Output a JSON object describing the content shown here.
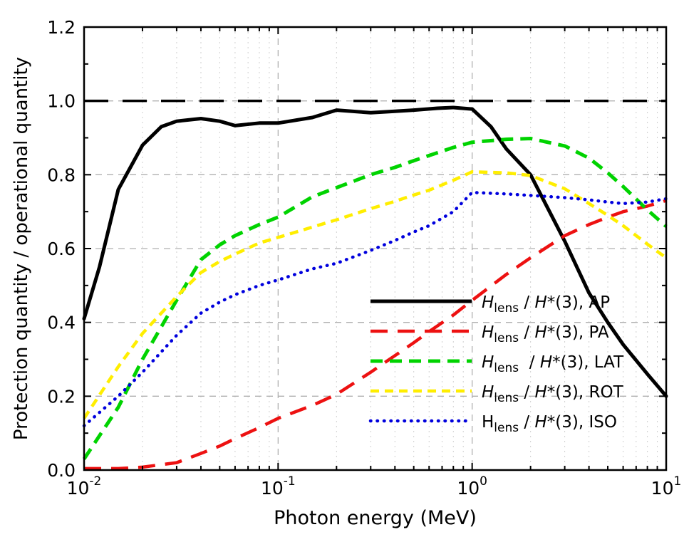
{
  "chart_data": {
    "type": "line",
    "title": "",
    "xlabel": "Photon energy (MeV)",
    "ylabel": "Protection quantity / operational quantity",
    "x_scale": "log",
    "xlim": [
      0.01,
      10
    ],
    "ylim": [
      0.0,
      1.2
    ],
    "x_major_ticks": [
      0.01,
      0.1,
      1,
      10
    ],
    "x_tick_labels": [
      {
        "base": "10",
        "exp": "-2"
      },
      {
        "base": "10",
        "exp": "-1"
      },
      {
        "base": "10",
        "exp": "0"
      },
      {
        "base": "10",
        "exp": "1"
      }
    ],
    "y_major_ticks": [
      0.0,
      0.2,
      0.4,
      0.6,
      0.8,
      1.0,
      1.2
    ],
    "y_tick_labels": [
      "0.0",
      "0.2",
      "0.4",
      "0.6",
      "0.8",
      "1.0",
      "1.2"
    ],
    "y_minor_step": 0.1,
    "grid": {
      "major_vertical_at": [
        0.1,
        1
      ],
      "horizontal_at": [
        0.2,
        0.4,
        0.6,
        0.8,
        1.0
      ],
      "major_color": "#b0b0b0",
      "minor_color": "#cfcfcf"
    },
    "reference_line": {
      "y": 1.0,
      "color": "#000000",
      "dash": [
        34,
        20
      ],
      "width": 3.5
    },
    "legend_position": "lower-right-inside",
    "series": [
      {
        "name": "AP",
        "color": "#000000",
        "dash": null,
        "width": 5,
        "label_segments": [
          {
            "t": "H",
            "style": "italic"
          },
          {
            "t": "lens",
            "style": "sub"
          },
          {
            "t": " / ",
            "style": "normal"
          },
          {
            "t": "H",
            "style": "italic"
          },
          {
            "t": "*(3), AP",
            "style": "normal"
          }
        ],
        "x": [
          0.01,
          0.012,
          0.015,
          0.02,
          0.025,
          0.03,
          0.04,
          0.05,
          0.06,
          0.08,
          0.1,
          0.15,
          0.2,
          0.3,
          0.4,
          0.5,
          0.662,
          0.8,
          1.0,
          1.25,
          1.5,
          2,
          3,
          4,
          5,
          6,
          8,
          10
        ],
        "y": [
          0.41,
          0.55,
          0.76,
          0.88,
          0.93,
          0.945,
          0.952,
          0.945,
          0.933,
          0.94,
          0.94,
          0.955,
          0.975,
          0.968,
          0.972,
          0.975,
          0.98,
          0.982,
          0.978,
          0.93,
          0.87,
          0.8,
          0.62,
          0.48,
          0.4,
          0.34,
          0.26,
          0.2
        ]
      },
      {
        "name": "PA",
        "color": "#ed1111",
        "dash": [
          24,
          14
        ],
        "width": 4.5,
        "label_segments": [
          {
            "t": "H",
            "style": "italic"
          },
          {
            "t": "lens",
            "style": "sub"
          },
          {
            "t": " / ",
            "style": "normal"
          },
          {
            "t": "H",
            "style": "italic"
          },
          {
            "t": "*(3), PA",
            "style": "normal"
          }
        ],
        "x": [
          0.01,
          0.015,
          0.02,
          0.03,
          0.04,
          0.05,
          0.06,
          0.08,
          0.1,
          0.15,
          0.2,
          0.3,
          0.4,
          0.5,
          0.6,
          0.8,
          1.0,
          1.5,
          2,
          3,
          4,
          5,
          6,
          8,
          10
        ],
        "y": [
          0.004,
          0.004,
          0.008,
          0.02,
          0.045,
          0.065,
          0.085,
          0.115,
          0.14,
          0.175,
          0.205,
          0.265,
          0.31,
          0.345,
          0.375,
          0.42,
          0.46,
          0.53,
          0.575,
          0.635,
          0.665,
          0.685,
          0.7,
          0.715,
          0.73
        ]
      },
      {
        "name": "LAT",
        "color": "#00d300",
        "dash": [
          17,
          10
        ],
        "width": 5,
        "label_segments": [
          {
            "t": "H",
            "style": "italic"
          },
          {
            "t": "lens",
            "style": "sub"
          },
          {
            "t": "  / ",
            "style": "normal"
          },
          {
            "t": "H",
            "style": "italic"
          },
          {
            "t": "*(3), LAT",
            "style": "normal"
          }
        ],
        "x": [
          0.01,
          0.015,
          0.02,
          0.03,
          0.04,
          0.05,
          0.06,
          0.08,
          0.1,
          0.15,
          0.2,
          0.3,
          0.4,
          0.5,
          0.6,
          0.8,
          1.0,
          1.5,
          2,
          3,
          4,
          5,
          6,
          8,
          10
        ],
        "y": [
          0.03,
          0.17,
          0.3,
          0.46,
          0.57,
          0.61,
          0.635,
          0.665,
          0.685,
          0.74,
          0.765,
          0.8,
          0.82,
          0.838,
          0.852,
          0.874,
          0.888,
          0.896,
          0.898,
          0.878,
          0.845,
          0.805,
          0.768,
          0.705,
          0.66
        ]
      },
      {
        "name": "ROT",
        "color": "#ffee00",
        "dash": [
          12,
          8
        ],
        "width": 4.5,
        "label_segments": [
          {
            "t": "H",
            "style": "italic"
          },
          {
            "t": "lens",
            "style": "sub"
          },
          {
            "t": " / ",
            "style": "normal"
          },
          {
            "t": "H",
            "style": "italic"
          },
          {
            "t": "*(3), ROT",
            "style": "normal"
          }
        ],
        "x": [
          0.01,
          0.015,
          0.02,
          0.03,
          0.04,
          0.05,
          0.06,
          0.08,
          0.1,
          0.15,
          0.2,
          0.3,
          0.4,
          0.5,
          0.6,
          0.8,
          1.0,
          1.5,
          2,
          3,
          4,
          5,
          6,
          8,
          10
        ],
        "y": [
          0.14,
          0.28,
          0.37,
          0.47,
          0.535,
          0.565,
          0.585,
          0.615,
          0.63,
          0.658,
          0.678,
          0.708,
          0.728,
          0.745,
          0.758,
          0.785,
          0.808,
          0.805,
          0.798,
          0.762,
          0.722,
          0.69,
          0.662,
          0.612,
          0.575
        ]
      },
      {
        "name": "ISO",
        "color": "#0000dd",
        "dash": "dot",
        "width": 4.5,
        "label_segments": [
          {
            "t": "H",
            "style": "normal"
          },
          {
            "t": "lens",
            "style": "sub"
          },
          {
            "t": " / ",
            "style": "normal"
          },
          {
            "t": "H",
            "style": "italic"
          },
          {
            "t": "*(3), ISO",
            "style": "normal"
          }
        ],
        "x": [
          0.01,
          0.015,
          0.02,
          0.03,
          0.04,
          0.05,
          0.06,
          0.08,
          0.1,
          0.15,
          0.2,
          0.3,
          0.4,
          0.5,
          0.6,
          0.8,
          1.0,
          1.5,
          2,
          3,
          4,
          5,
          6,
          8,
          10
        ],
        "y": [
          0.12,
          0.2,
          0.265,
          0.365,
          0.425,
          0.455,
          0.475,
          0.5,
          0.515,
          0.545,
          0.56,
          0.595,
          0.622,
          0.645,
          0.662,
          0.7,
          0.752,
          0.748,
          0.744,
          0.738,
          0.732,
          0.726,
          0.722,
          0.726,
          0.735
        ]
      }
    ]
  }
}
